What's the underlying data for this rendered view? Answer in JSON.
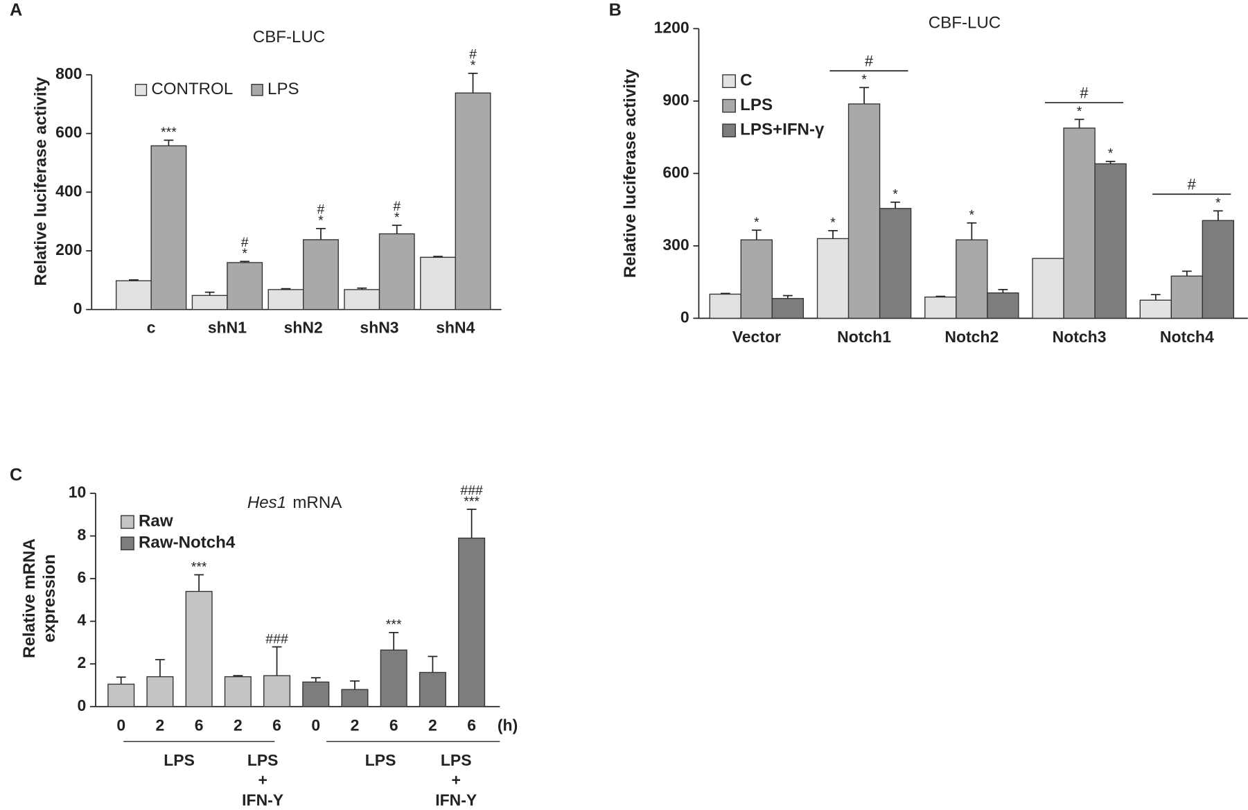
{
  "chart_data": [
    {
      "type": "bar",
      "panel": "A",
      "title": [
        "CBF-LUC"
      ],
      "ylabel": [
        "Relative luciferase activity"
      ],
      "categories": [
        "c",
        "shN1",
        "shN2",
        "shN3",
        "shN4"
      ],
      "ylim": [
        0,
        800
      ],
      "yticks": [
        0,
        200,
        400,
        600,
        800
      ],
      "series": [
        {
          "name": "CONTROL",
          "color": "#e2e2e2",
          "values": [
            98,
            48,
            68,
            68,
            178
          ],
          "errors": [
            3,
            11,
            3,
            5,
            3
          ],
          "sig": [
            null,
            null,
            null,
            null,
            null
          ]
        },
        {
          "name": "LPS",
          "color": "#a9a9a9",
          "values": [
            558,
            160,
            238,
            258,
            738
          ],
          "errors": [
            19,
            4,
            38,
            29,
            67
          ],
          "sig": [
            [
              "***"
            ],
            [
              "#",
              "*"
            ],
            [
              "#",
              "*"
            ],
            [
              "#",
              "*"
            ],
            [
              "#",
              "*"
            ]
          ]
        }
      ]
    },
    {
      "type": "bar",
      "panel": "B",
      "title": [
        "CBF-LUC"
      ],
      "ylabel": [
        "Relative luciferase activity"
      ],
      "categories": [
        "Vector",
        "Notch1",
        "Notch2",
        "Notch3",
        "Notch4"
      ],
      "ylim": [
        0,
        1200
      ],
      "yticks": [
        0,
        300,
        600,
        900,
        1200
      ],
      "bracket_labels": [
        null,
        "#",
        null,
        "#",
        "#"
      ],
      "series": [
        {
          "name": "C",
          "color": "#e2e2e2",
          "values": [
            100,
            330,
            88,
            248,
            75
          ],
          "errors": [
            3,
            33,
            3,
            null,
            23
          ],
          "sig": [
            null,
            [
              "*"
            ],
            null,
            null,
            null
          ]
        },
        {
          "name": "LPS",
          "color": "#a9a9a9",
          "values": [
            325,
            888,
            325,
            788,
            175
          ],
          "errors": [
            40,
            68,
            70,
            36,
            20
          ],
          "sig": [
            [
              "*"
            ],
            [
              "*"
            ],
            [
              "*"
            ],
            [
              "*"
            ],
            null
          ]
        },
        {
          "name": "LPS+IFN-γ",
          "color": "#7d7d7d",
          "values": [
            82,
            455,
            105,
            640,
            405
          ],
          "errors": [
            12,
            26,
            14,
            10,
            40
          ],
          "sig": [
            null,
            [
              "*"
            ],
            null,
            [
              "*"
            ],
            [
              "*"
            ]
          ]
        }
      ]
    },
    {
      "type": "bar",
      "panel": "C",
      "title": [
        "Hes1",
        "mRNA"
      ],
      "ylabel": [
        "Relative mRNA",
        "expression"
      ],
      "categories": [
        "0",
        "2",
        "6",
        "2",
        "6",
        "0",
        "2",
        "6",
        "2",
        "6"
      ],
      "x_unit": "(h)",
      "group_labels": [
        [
          "LPS"
        ],
        [
          "LPS",
          "+",
          "IFN-Y"
        ],
        [
          "LPS"
        ],
        [
          "LPS",
          "+",
          "IFN-Y"
        ]
      ],
      "ylim": [
        0,
        10
      ],
      "yticks": [
        0,
        2,
        4,
        6,
        8,
        10
      ],
      "series": [
        {
          "name": "Raw",
          "color": "#c4c4c4",
          "values": [
            1.05,
            1.4,
            5.4,
            1.4,
            1.45,
            null,
            null,
            null,
            null,
            null
          ],
          "errors": [
            0.33,
            0.8,
            0.78,
            0.05,
            1.35,
            null,
            null,
            null,
            null,
            null
          ],
          "sig": [
            null,
            null,
            [
              "***"
            ],
            null,
            [
              "###"
            ],
            null,
            null,
            null,
            null,
            null
          ]
        },
        {
          "name": "Raw-Notch4",
          "color": "#7d7d7d",
          "values": [
            null,
            null,
            null,
            null,
            null,
            1.15,
            0.8,
            2.65,
            1.6,
            7.9
          ],
          "errors": [
            null,
            null,
            null,
            null,
            null,
            0.2,
            0.4,
            0.82,
            0.75,
            1.35
          ],
          "sig": [
            null,
            null,
            null,
            null,
            null,
            null,
            null,
            [
              "***"
            ],
            null,
            [
              "###",
              "***"
            ]
          ]
        }
      ]
    }
  ]
}
